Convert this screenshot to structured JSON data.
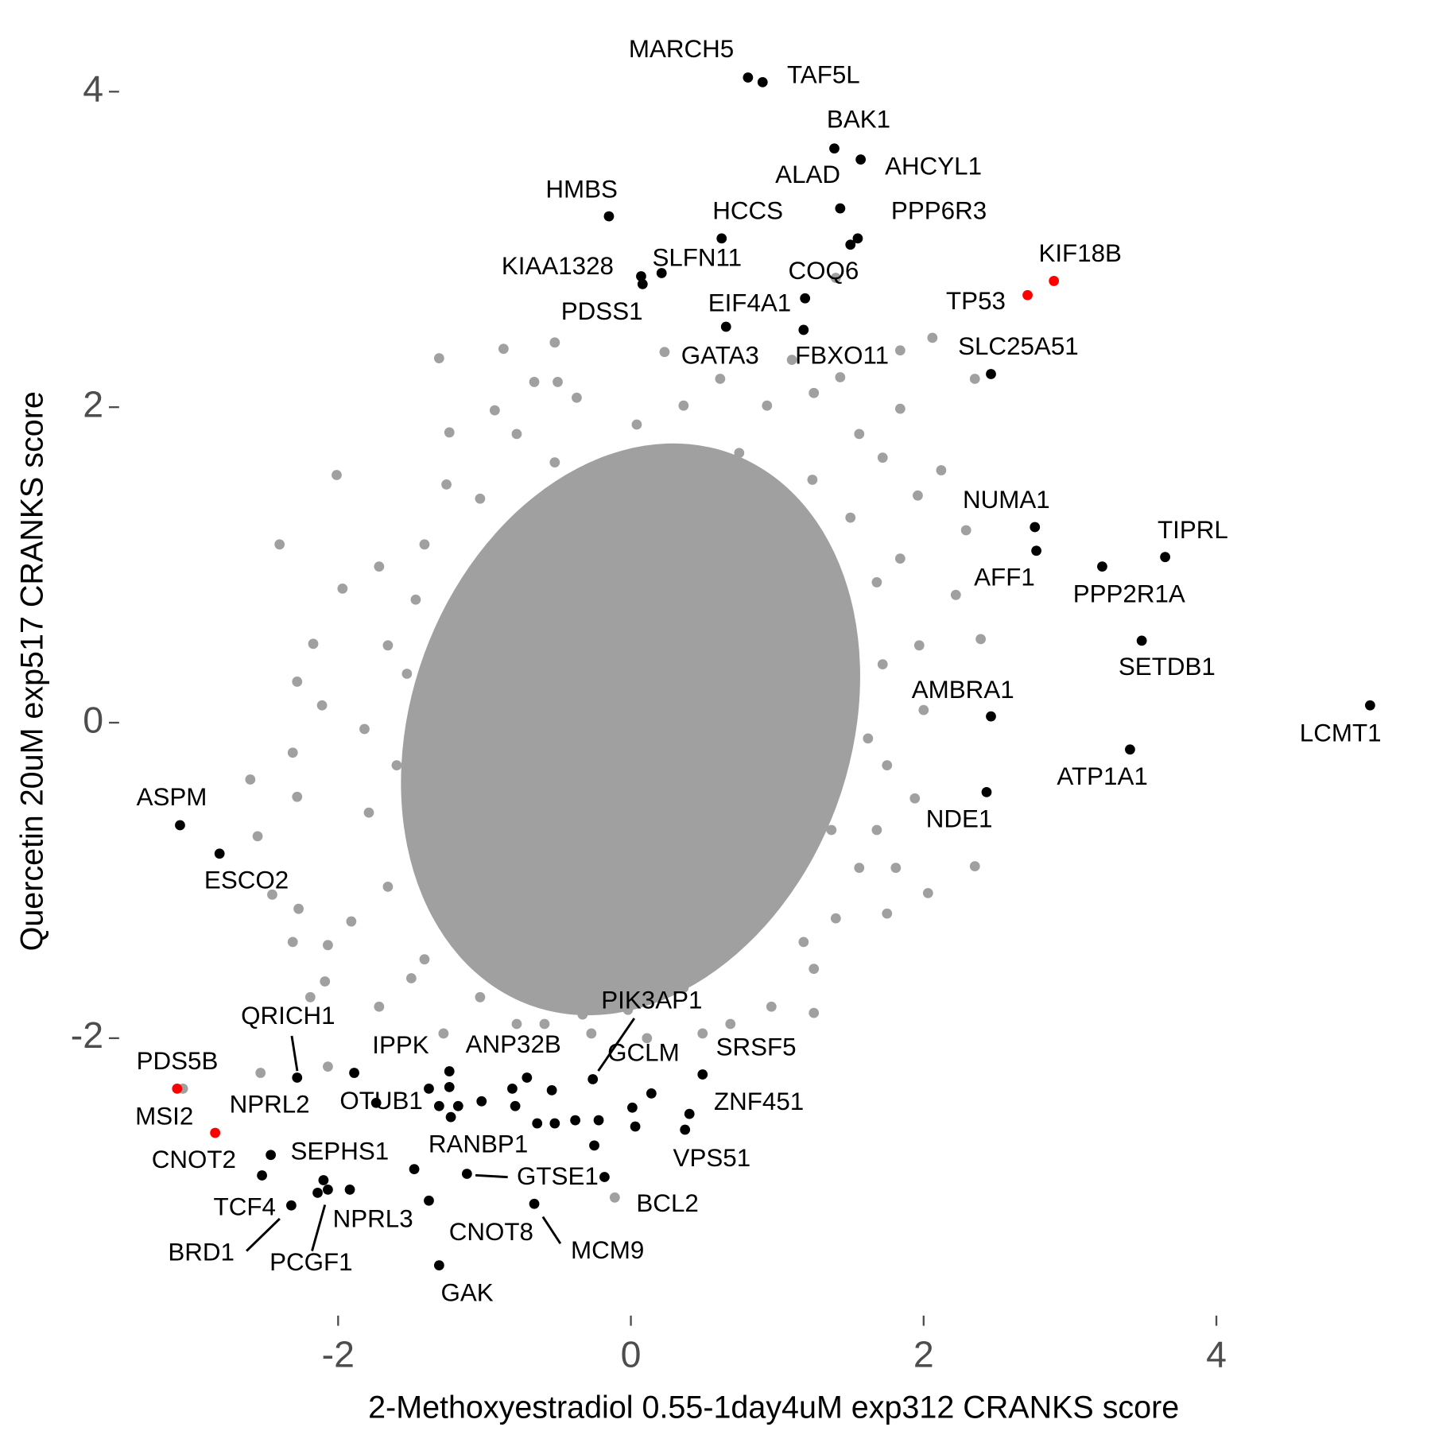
{
  "chart_data": {
    "type": "scatter",
    "xlabel": "2-Methoxyestradiol 0.55-1day4uM exp312 CRANKS score",
    "ylabel": "Quercetin 20uM exp517 CRANKS score",
    "xlim": [
      -3.49,
      5.34
    ],
    "ylim": [
      -3.7,
      4.23
    ],
    "xticks": [
      -2,
      0,
      2,
      4
    ],
    "yticks": [
      -2,
      0,
      2,
      4
    ],
    "series": [
      {
        "color": "#a0a0a0",
        "x": [
          -1.31,
          -0.87,
          -0.52,
          -0.66,
          -0.5,
          -2.01,
          -2.4,
          -1.97,
          -2.17,
          -2.28,
          -2.11,
          -2.31,
          -2.6,
          -2.28,
          -2.55,
          -2.45,
          -2.27,
          -2.31,
          -2.07,
          -2.19,
          -2.09,
          -1.91,
          -1.72,
          -2.07,
          -2.53,
          -1.24,
          -0.93,
          -1.26,
          -1.72,
          -1.66,
          -1.82,
          -1.79,
          -1.66,
          -1.41,
          -1.03,
          -0.59,
          -0.33,
          -0.02,
          0.36,
          0.68,
          0.96,
          1.25,
          1.25,
          1.4,
          1.75,
          2.03,
          2.35,
          1.94,
          1.75,
          2.0,
          1.97,
          2.39,
          2.22,
          2.29,
          1.84,
          1.96,
          2.12,
          1.72,
          1.84,
          2.06,
          1.84,
          2.35,
          1.43,
          1.1,
          0.23,
          1.4,
          0.36,
          0.61,
          -0.37,
          0.04,
          0.93,
          1.25,
          -0.78,
          1.56,
          -0.27,
          0.11,
          0.49,
          -0.78,
          -1.28,
          -1.5,
          -1.03,
          1.18,
          1.56,
          1.68,
          1.81,
          -1.6,
          -1.53,
          -1.47,
          -1.41,
          -1.03,
          -0.52,
          0.74,
          1.24,
          1.5,
          1.68,
          1.72,
          1.62,
          1.37
        ],
        "y": [
          2.31,
          2.37,
          2.41,
          2.16,
          2.16,
          1.57,
          1.13,
          0.85,
          0.5,
          0.26,
          0.11,
          -0.19,
          -0.36,
          -0.47,
          -0.72,
          -1.09,
          -1.18,
          -1.39,
          -1.41,
          -1.74,
          -1.64,
          -1.26,
          -1.8,
          -2.18,
          -2.22,
          1.84,
          1.98,
          1.51,
          0.99,
          0.49,
          -0.04,
          -0.57,
          -1.04,
          -1.5,
          -1.74,
          -1.91,
          -1.85,
          -1.82,
          -1.68,
          -1.91,
          -1.8,
          -1.84,
          -1.56,
          -1.24,
          -1.21,
          -1.08,
          -0.91,
          -0.48,
          -0.27,
          0.08,
          0.49,
          0.53,
          0.81,
          1.22,
          1.04,
          1.44,
          1.6,
          1.68,
          1.99,
          2.44,
          2.36,
          2.18,
          2.19,
          2.3,
          2.35,
          2.82,
          2.01,
          2.18,
          2.06,
          1.89,
          2.01,
          2.09,
          1.83,
          1.83,
          -1.97,
          -2.0,
          -1.97,
          -1.91,
          -1.97,
          -1.62,
          -1.39,
          -1.39,
          -0.92,
          -0.68,
          -0.92,
          -0.27,
          0.31,
          0.78,
          1.13,
          1.42,
          1.65,
          1.71,
          1.54,
          1.3,
          0.89,
          0.37,
          -0.1,
          -0.68
        ]
      },
      {
        "color": "#a0a0a0",
        "x": [
          -3.06,
          -0.11
        ],
        "y": [
          -2.32,
          -3.01
        ],
        "labels": [
          "MSI2",
          "BCL2"
        ]
      },
      {
        "color": "#000000",
        "x": [
          0.8,
          0.9,
          1.39,
          1.57,
          1.43,
          1.55,
          1.5,
          -0.15,
          0.62,
          0.07,
          0.08,
          0.21,
          1.19,
          0.65,
          1.18,
          2.46,
          2.76,
          2.77,
          3.22,
          3.65,
          3.49,
          2.46,
          5.05,
          3.41,
          2.43,
          -3.08,
          -2.81,
          -2.28,
          -2.46,
          -2.52,
          -2.32,
          -2.14,
          -2.07,
          -1.92,
          -2.1,
          -1.89,
          -1.74,
          -1.48,
          -1.12,
          -1.38,
          -1.31,
          -0.66,
          -1.24,
          -0.26,
          0.14,
          0.49,
          0.4,
          0.37,
          -1.38,
          -1.31,
          -1.23,
          -1.18,
          -1.02,
          -0.81,
          -0.79,
          -0.71,
          -0.64,
          -0.54,
          -0.52,
          -0.38,
          -0.25,
          -0.22,
          0.01,
          0.03,
          -0.18,
          -1.24
        ],
        "y": [
          4.09,
          4.06,
          3.64,
          3.57,
          3.26,
          3.07,
          3.03,
          3.21,
          3.07,
          2.83,
          2.78,
          2.85,
          2.69,
          2.51,
          2.49,
          2.21,
          1.24,
          1.09,
          0.99,
          1.05,
          0.52,
          0.04,
          0.11,
          -0.17,
          -0.44,
          -0.65,
          -0.83,
          -2.25,
          -2.74,
          -2.87,
          -3.06,
          -2.98,
          -2.96,
          -2.96,
          -2.9,
          -2.22,
          -2.41,
          -2.83,
          -2.86,
          -3.03,
          -3.44,
          -3.05,
          -2.21,
          -2.26,
          -2.35,
          -2.23,
          -2.48,
          -2.58,
          -2.32,
          -2.43,
          -2.5,
          -2.43,
          -2.4,
          -2.32,
          -2.43,
          -2.25,
          -2.54,
          -2.33,
          -2.54,
          -2.52,
          -2.68,
          -2.52,
          -2.44,
          -2.56,
          -2.88,
          -2.31
        ],
        "labels": [
          "MARCH5",
          "TAF5L",
          "BAK1",
          "AHCYL1",
          "ALAD",
          "PPP6R3",
          "COQ6",
          "HMBS",
          "HCCS",
          "KIAA1328",
          "PDSS1",
          "SLFN11",
          "EIF4A1",
          "GATA3",
          "FBXO11",
          "SLC25A51",
          "NUMA1",
          "AFF1",
          "PPP2R1A",
          "TIPRL",
          "SETDB1",
          "AMBRA1",
          "LCMT1",
          "ATP1A1",
          "NDE1",
          "ASPM",
          "ESCO2",
          "QRICH1",
          "SEPHS1",
          "CNOT2",
          "TCF4",
          "BRD1",
          "PCGF1",
          "NPRL3",
          null,
          "IPPK",
          "OTUB1",
          "RANBP1",
          "GTSE1",
          "CNOT8",
          "GAK",
          "MCM9",
          "ANP32B",
          "PIK3AP1",
          "GCLM",
          "SRSF5",
          "ZNF451",
          "VPS51",
          null,
          null,
          null,
          null,
          null,
          null,
          null,
          null,
          null,
          null,
          null,
          null,
          null,
          null,
          null,
          null,
          null,
          null
        ]
      },
      {
        "color": "#ff0000",
        "x": [
          2.71,
          2.89,
          -3.1,
          -2.84
        ],
        "y": [
          2.71,
          2.8,
          -2.32,
          -2.6
        ],
        "labels": [
          "TP53",
          "KIF18B",
          "PDS5B",
          "NPRL2"
        ]
      }
    ]
  }
}
